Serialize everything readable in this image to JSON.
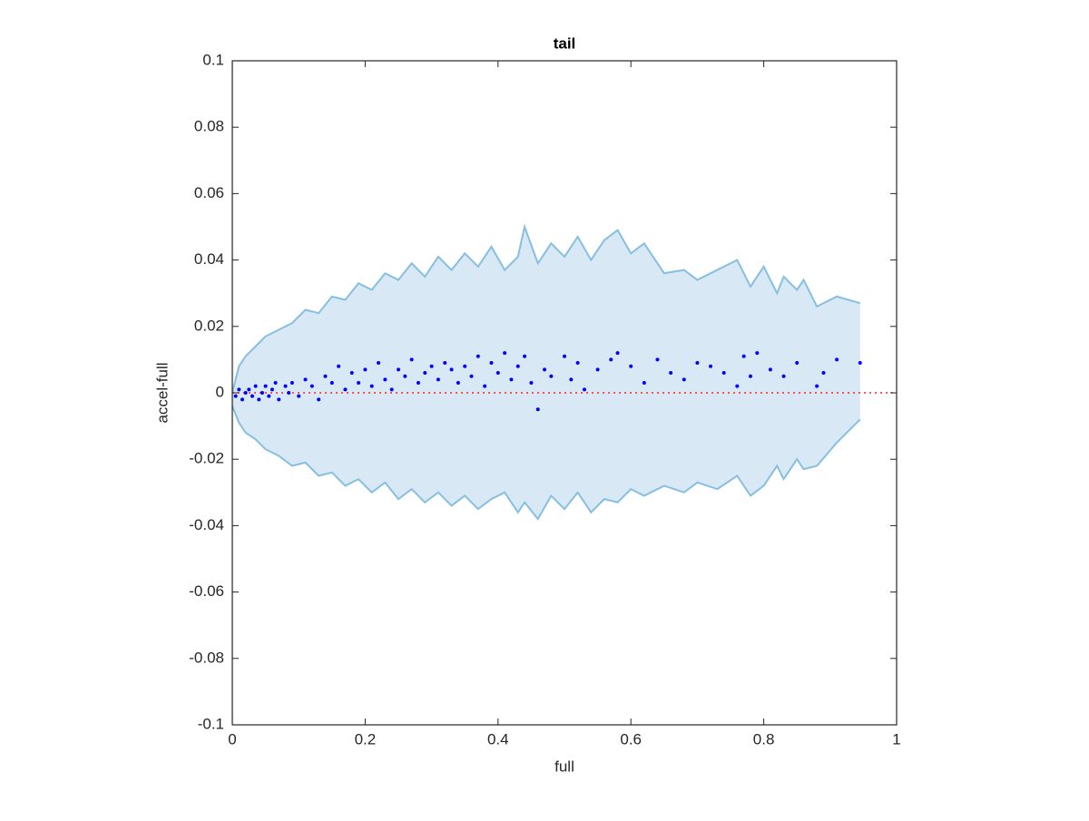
{
  "chart_data": {
    "type": "scatter",
    "title": "tail",
    "xlabel": "full",
    "ylabel": "accel-full",
    "xlim": [
      0,
      1
    ],
    "ylim": [
      -0.1,
      0.1
    ],
    "xticks": [
      0,
      0.2,
      0.4,
      0.6,
      0.8,
      1
    ],
    "yticks": [
      -0.1,
      -0.08,
      -0.06,
      -0.04,
      -0.02,
      0,
      0.02,
      0.04,
      0.06,
      0.08,
      0.1
    ],
    "box": true,
    "band": {
      "line_color": "#86bfe0",
      "fill_color": "#d9e8f5",
      "x": [
        0,
        0.01,
        0.02,
        0.035,
        0.05,
        0.07,
        0.09,
        0.11,
        0.13,
        0.15,
        0.17,
        0.19,
        0.21,
        0.23,
        0.25,
        0.27,
        0.29,
        0.31,
        0.33,
        0.35,
        0.37,
        0.39,
        0.41,
        0.43,
        0.44,
        0.46,
        0.48,
        0.5,
        0.52,
        0.54,
        0.56,
        0.58,
        0.6,
        0.62,
        0.65,
        0.68,
        0.7,
        0.73,
        0.76,
        0.78,
        0.8,
        0.82,
        0.83,
        0.85,
        0.86,
        0.88,
        0.91,
        0.945
      ],
      "upper": [
        0,
        0.008,
        0.011,
        0.014,
        0.017,
        0.019,
        0.021,
        0.025,
        0.024,
        0.029,
        0.028,
        0.033,
        0.031,
        0.036,
        0.034,
        0.039,
        0.035,
        0.041,
        0.037,
        0.042,
        0.038,
        0.044,
        0.037,
        0.041,
        0.05,
        0.039,
        0.045,
        0.041,
        0.047,
        0.04,
        0.046,
        0.049,
        0.042,
        0.045,
        0.036,
        0.037,
        0.034,
        0.037,
        0.04,
        0.032,
        0.038,
        0.03,
        0.035,
        0.031,
        0.034,
        0.026,
        0.029,
        0.027
      ],
      "lower": [
        -0.004,
        -0.009,
        -0.012,
        -0.014,
        -0.017,
        -0.019,
        -0.022,
        -0.021,
        -0.025,
        -0.024,
        -0.028,
        -0.026,
        -0.03,
        -0.027,
        -0.032,
        -0.029,
        -0.033,
        -0.03,
        -0.034,
        -0.031,
        -0.035,
        -0.032,
        -0.03,
        -0.036,
        -0.033,
        -0.038,
        -0.031,
        -0.035,
        -0.03,
        -0.036,
        -0.032,
        -0.033,
        -0.029,
        -0.031,
        -0.028,
        -0.03,
        -0.027,
        -0.029,
        -0.025,
        -0.031,
        -0.028,
        -0.022,
        -0.026,
        -0.02,
        -0.023,
        -0.022,
        -0.015,
        -0.008
      ]
    },
    "reference_line": {
      "y": 0,
      "color": "#ff2020"
    },
    "series": [
      {
        "color": "#0000ff",
        "x": [
          0.005,
          0.01,
          0.015,
          0.02,
          0.025,
          0.03,
          0.035,
          0.04,
          0.045,
          0.05,
          0.055,
          0.06,
          0.065,
          0.07,
          0.08,
          0.085,
          0.09,
          0.1,
          0.11,
          0.12,
          0.13,
          0.14,
          0.15,
          0.16,
          0.17,
          0.18,
          0.19,
          0.2,
          0.21,
          0.22,
          0.23,
          0.24,
          0.25,
          0.26,
          0.27,
          0.28,
          0.29,
          0.3,
          0.31,
          0.32,
          0.33,
          0.34,
          0.35,
          0.36,
          0.37,
          0.38,
          0.39,
          0.4,
          0.41,
          0.42,
          0.43,
          0.44,
          0.45,
          0.46,
          0.47,
          0.48,
          0.5,
          0.51,
          0.52,
          0.53,
          0.55,
          0.57,
          0.58,
          0.6,
          0.62,
          0.64,
          0.66,
          0.68,
          0.7,
          0.72,
          0.74,
          0.76,
          0.77,
          0.78,
          0.79,
          0.81,
          0.83,
          0.85,
          0.88,
          0.89,
          0.91,
          0.945
        ],
        "values": [
          -0.001,
          0.001,
          -0.002,
          0,
          0.001,
          -0.001,
          0.002,
          -0.002,
          0,
          0.002,
          -0.001,
          0.001,
          0.003,
          -0.002,
          0.002,
          0,
          0.003,
          -0.001,
          0.004,
          0.002,
          -0.002,
          0.005,
          0.003,
          0.008,
          0.001,
          0.006,
          0.003,
          0.007,
          0.002,
          0.009,
          0.004,
          0.001,
          0.007,
          0.005,
          0.01,
          0.003,
          0.006,
          0.008,
          0.004,
          0.009,
          0.007,
          0.003,
          0.008,
          0.005,
          0.011,
          0.002,
          0.009,
          0.006,
          0.012,
          0.004,
          0.008,
          0.011,
          0.003,
          -0.005,
          0.007,
          0.005,
          0.011,
          0.004,
          0.009,
          0.001,
          0.007,
          0.01,
          0.012,
          0.008,
          0.003,
          0.01,
          0.006,
          0.004,
          0.009,
          0.008,
          0.006,
          0.002,
          0.011,
          0.005,
          0.012,
          0.007,
          0.005,
          0.009,
          0.002,
          0.006,
          0.01,
          0.009
        ]
      }
    ]
  }
}
